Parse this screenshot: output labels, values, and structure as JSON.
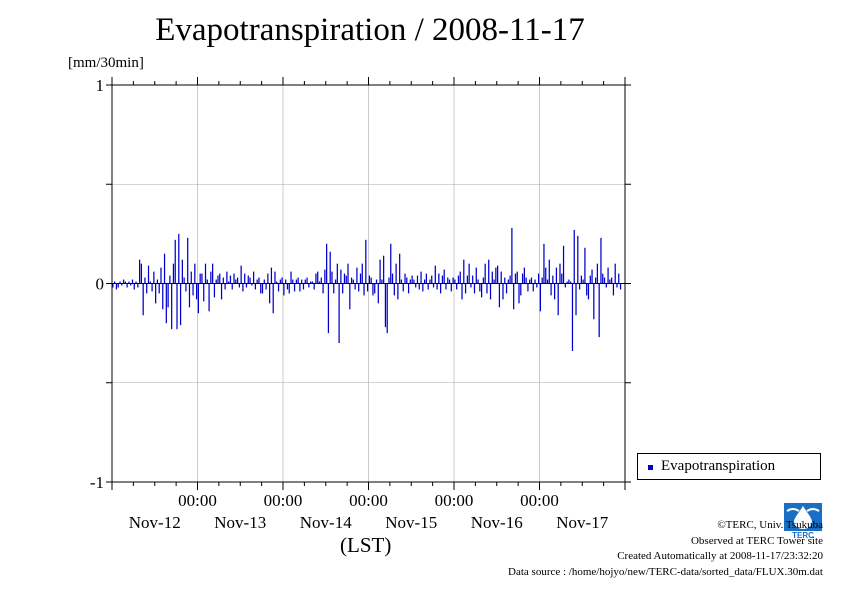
{
  "header": {
    "title": "Evapotranspiration / 2008-11-17",
    "unit": "[mm/30min]"
  },
  "legend": {
    "label": "Evapotranspiration",
    "color": "#0000cc"
  },
  "footer": {
    "xunit": "(LST)",
    "credit_lines": [
      "©TERC, Univ. Tsukuba",
      "Observed at TERC Tower site",
      "Created Automatically at 2008-11-17/23:32:20",
      "Data source : /home/hojyo/new/TERC-data/sorted_data/FLUX.30m.dat"
    ],
    "logo_text": "TERC",
    "logo_icon": "terc-water-drop-logo-icon"
  },
  "chart_data": {
    "type": "bar",
    "title": "Evapotranspiration / 2008-11-17",
    "ylabel": "[mm/30min]",
    "xlabel": "(LST)",
    "ylim": [
      -1,
      1
    ],
    "yticks": [
      -1,
      0,
      1
    ],
    "grid": true,
    "legend_position": "bottom-right",
    "series_color": "#0000cc",
    "x_tick_time_labels": [
      "00:00",
      "00:00",
      "00:00",
      "00:00",
      "00:00"
    ],
    "x_tick_day_labels": [
      "Nov-12",
      "Nov-13",
      "Nov-14",
      "Nov-15",
      "Nov-16",
      "Nov-17"
    ],
    "x_tick_days_after_start": [
      1,
      2,
      3,
      4,
      5
    ],
    "xlim_days": [
      0,
      6
    ],
    "series": [
      {
        "name": "Evapotranspiration",
        "interval_hours": 0.5,
        "values": [
          -0.02,
          0.01,
          -0.03,
          -0.02,
          0.01,
          -0.01,
          0.02,
          0.01,
          -0.02,
          0.01,
          -0.01,
          0.02,
          -0.03,
          0.01,
          -0.02,
          0.12,
          0.1,
          -0.16,
          0.03,
          -0.05,
          0.09,
          0.01,
          -0.04,
          0.06,
          -0.1,
          0.02,
          -0.05,
          0.08,
          -0.13,
          0.15,
          -0.2,
          -0.12,
          0.04,
          -0.23,
          0.1,
          0.22,
          -0.23,
          0.25,
          -0.21,
          0.12,
          0.03,
          -0.04,
          0.23,
          -0.12,
          0.06,
          -0.06,
          0.1,
          -0.08,
          -0.15,
          0.05,
          0.05,
          -0.09,
          0.1,
          0.02,
          -0.14,
          0.06,
          0.1,
          -0.07,
          0.02,
          0.04,
          0.05,
          -0.08,
          0.03,
          -0.03,
          0.06,
          0.01,
          0.04,
          -0.03,
          0.05,
          0.02,
          0.03,
          -0.02,
          0.09,
          -0.04,
          0.05,
          -0.02,
          0.04,
          0.03,
          -0.01,
          0.06,
          -0.03,
          0.02,
          0.03,
          -0.05,
          -0.05,
          0.02,
          -0.03,
          0.05,
          -0.1,
          0.08,
          -0.15,
          0.06,
          0.01,
          -0.04,
          0.02,
          0.03,
          -0.06,
          0.02,
          -0.03,
          -0.05,
          0.06,
          0.02,
          -0.04,
          0.02,
          0.03,
          -0.04,
          0.02,
          -0.03,
          0.02,
          0.03,
          -0.02,
          0.01,
          0.01,
          -0.03,
          0.05,
          0.06,
          0.01,
          0.03,
          -0.05,
          0.07,
          0.2,
          -0.25,
          0.16,
          0.06,
          -0.05,
          0.02,
          0.1,
          -0.3,
          0.07,
          -0.05,
          0.05,
          0.04,
          0.1,
          -0.13,
          0.03,
          0.02,
          -0.03,
          0.08,
          -0.04,
          0.05,
          0.1,
          -0.06,
          0.22,
          -0.04,
          0.04,
          0.03,
          -0.06,
          -0.05,
          0.02,
          -0.1,
          0.12,
          0.02,
          0.14,
          -0.22,
          -0.25,
          0.03,
          0.2,
          0.05,
          -0.06,
          0.1,
          -0.08,
          0.15,
          0.02,
          -0.04,
          0.05,
          0.03,
          -0.05,
          0.02,
          0.04,
          0.02,
          -0.02,
          0.04,
          -0.03,
          0.06,
          -0.04,
          0.02,
          0.05,
          -0.03,
          0.02,
          0.04,
          -0.02,
          0.09,
          -0.03,
          0.05,
          -0.05,
          0.04,
          0.07,
          -0.03,
          0.03,
          0.02,
          -0.04,
          0.03,
          0.02,
          -0.03,
          0.04,
          0.06,
          -0.08,
          0.12,
          -0.05,
          0.04,
          0.1,
          -0.02,
          0.04,
          -0.05,
          0.08,
          0.02,
          -0.04,
          -0.07,
          0.03,
          0.1,
          -0.05,
          0.12,
          -0.08,
          0.06,
          0.02,
          0.08,
          0.09,
          -0.12,
          0.06,
          -0.08,
          0.03,
          -0.05,
          0.02,
          0.04,
          0.28,
          -0.13,
          0.05,
          0.06,
          -0.1,
          -0.06,
          0.05,
          0.08,
          0.03,
          -0.04,
          0.02,
          0.03,
          -0.04,
          0.02,
          -0.02,
          0.05,
          -0.14,
          0.03,
          0.2,
          0.08,
          0.02,
          0.12,
          -0.06,
          0.04,
          -0.08,
          0.08,
          -0.16,
          0.1,
          0.05,
          0.19,
          -0.02,
          0.01,
          0.02,
          0.01,
          -0.34,
          0.27,
          -0.16,
          0.24,
          -0.03,
          0.04,
          0.02,
          0.18,
          -0.06,
          -0.08,
          0.04,
          0.07,
          -0.18,
          0.03,
          0.1,
          -0.27,
          0.23,
          0.05,
          0.03,
          -0.02,
          0.08,
          0.02,
          0.03,
          -0.06,
          0.1,
          -0.02,
          0.05,
          -0.03
        ]
      }
    ]
  }
}
